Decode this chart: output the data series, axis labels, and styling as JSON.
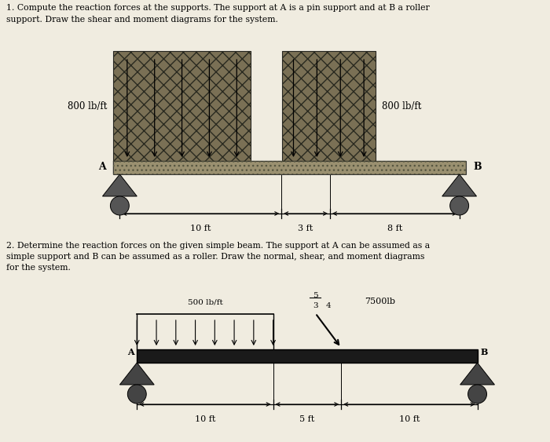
{
  "bg_color": "#f0ece0",
  "text_color": "#000000",
  "title1_line1": "1. Compute the reaction forces at the supports. The support at A is a pin support and at B a roller",
  "title1_line2": "support. Draw the shear and moment diagrams for the system.",
  "title2_line1": "2. Determine the reaction forces on the given simple beam. The support at A can be assumed as a",
  "title2_line2": "simple support and B can be assumed as a roller. Draw the normal, shear, and moment diagrams",
  "title2_line3": "for the system.",
  "d1_load_color": "#7a7055",
  "d1_beam_color": "#9a9070",
  "d1_support_color": "#555555",
  "label_800_left": "800 lb/ft",
  "label_800_right": "800 lb/ft",
  "label_A1": "A",
  "label_B1": "B",
  "dim_10ft": "10 ft",
  "dim_3ft": "3 ft",
  "dim_8ft": "8 ft",
  "d2_beam_color": "#1a1a1a",
  "label_500": "500 lb/ft",
  "label_7500": "7500lb",
  "label_A2": "A",
  "label_B2": "B",
  "dim2_10ft_left": "10 ft",
  "dim2_5ft": "5 ft",
  "dim2_10ft_right": "10 ft"
}
